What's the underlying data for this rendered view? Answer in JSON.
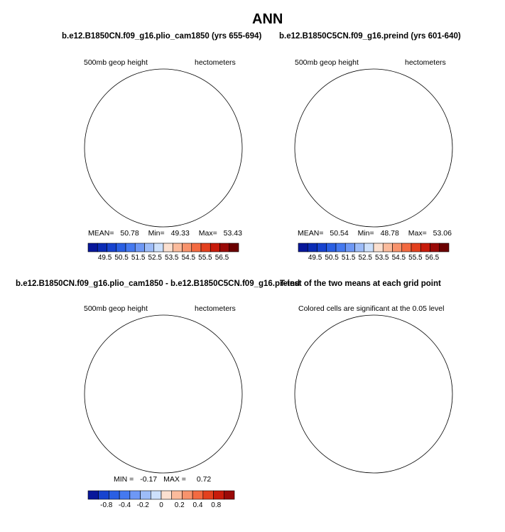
{
  "figure": {
    "title": "ANN"
  },
  "chart_data": [
    {
      "type": "heatmap",
      "title": "b.e12.B1850CN.f09_g16.plio_cam1850 (yrs 655-694)",
      "left_label": "500mb geop height",
      "right_label": "hectometers",
      "stats": {
        "mean_label": "MEAN=",
        "mean": "50.78",
        "min_label": "Min=",
        "min": "49.33",
        "max_label": "Max=",
        "max": "53.43"
      },
      "colorbar": {
        "ticks": [
          "49.5",
          "50.5",
          "51.5",
          "52.5",
          "53.5",
          "54.5",
          "55.5",
          "56.5"
        ],
        "colors": [
          "#08179a",
          "#0b2cb5",
          "#1743cf",
          "#2a5fe3",
          "#4579f0",
          "#6e98f5",
          "#9dbcf8",
          "#cde0fb",
          "#fbe0d0",
          "#fbbb9c",
          "#f8936c",
          "#f36a41",
          "#e3401e",
          "#c81b0b",
          "#9a0a08",
          "#6b0000"
        ]
      }
    },
    {
      "type": "heatmap",
      "title": "b.e12.B1850C5CN.f09_g16.preind (yrs 601-640)",
      "left_label": "500mb geop height",
      "right_label": "hectometers",
      "stats": {
        "mean_label": "MEAN=",
        "mean": "50.54",
        "min_label": "Min=",
        "min": "48.78",
        "max_label": "Max=",
        "max": "53.06"
      },
      "colorbar": {
        "ticks": [
          "49.5",
          "50.5",
          "51.5",
          "52.5",
          "53.5",
          "54.5",
          "55.5",
          "56.5"
        ],
        "colors": [
          "#08179a",
          "#0b2cb5",
          "#1743cf",
          "#2a5fe3",
          "#4579f0",
          "#6e98f5",
          "#9dbcf8",
          "#cde0fb",
          "#fbe0d0",
          "#fbbb9c",
          "#f8936c",
          "#f36a41",
          "#e3401e",
          "#c81b0b",
          "#9a0a08",
          "#6b0000"
        ]
      }
    },
    {
      "type": "heatmap",
      "title": "b.e12.B1850CN.f09_g16.plio_cam1850 - b.e12.B1850C5CN.f09_g16.preind",
      "left_label": "500mb geop height",
      "right_label": "hectometers",
      "stats": {
        "min_label": "MIN =",
        "min": "-0.17",
        "max_label": "MAX =",
        "max": "0.72"
      },
      "colorbar": {
        "ticks": [
          "-0.8",
          "-0.4",
          "-0.2",
          "0",
          "0.2",
          "0.4",
          "0.8"
        ],
        "colors": [
          "#08179a",
          "#1743cf",
          "#2a5fe3",
          "#4579f0",
          "#6e98f5",
          "#9dbcf8",
          "#cde0fb",
          "#fbe0d0",
          "#fbbb9c",
          "#f8936c",
          "#f36a41",
          "#e3401e",
          "#c81b0b",
          "#9a0a08"
        ]
      }
    },
    {
      "type": "heatmap",
      "title": "T-test of the two means at each grid point",
      "left_label": "Colored cells are significant at the 0.05 level",
      "significant_color": "#fc7d45"
    }
  ],
  "colors": {
    "ocean_edge": "#6b8ef6",
    "deep_blue": "#1a2fb3",
    "mid_blue": "#2a52d8",
    "diff_orange": "#f56f3c",
    "diff_peach": "#fbc3a6",
    "diff_pale": "#fde1d0",
    "diff_blue": "#c8daf8",
    "coast": "#000000"
  }
}
